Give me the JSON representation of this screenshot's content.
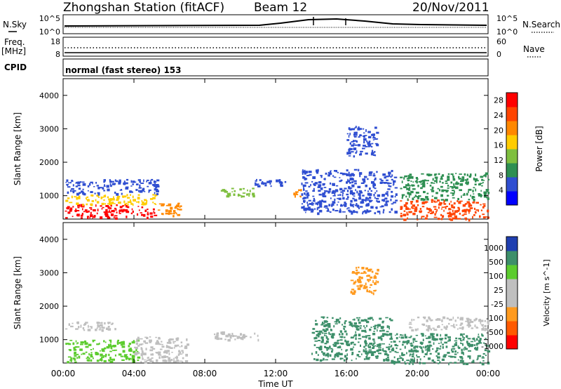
{
  "header": {
    "station": "Zhongshan Station (fitACF)",
    "beam": "Beam 12",
    "date": "20/Nov/2011"
  },
  "strip_labels": {
    "nsky": "N.Sky",
    "nsearch": "N.Search",
    "nsky_top": "10^5",
    "nsky_bottom": "10^0",
    "nsearch_top": "10^5",
    "nsearch_bottom": "10^0",
    "freq_line1": "Freq.",
    "freq_line2": "[MHz]",
    "freq_top": "18",
    "freq_bottom": "8",
    "nave": "Nave",
    "nave_top": "60",
    "nave_bottom": "0",
    "cpid": "CPID",
    "mode": "normal (fast stereo) 153"
  },
  "colors": {
    "power_scale": [
      "#0000ff",
      "#2f4ed1",
      "#2e8f52",
      "#7fbf3f",
      "#ffcc00",
      "#ff8800",
      "#ff4400",
      "#ff0000"
    ],
    "velocity_scale": [
      "#ff0000",
      "#ff5a00",
      "#ff9a1e",
      "#bfbfbf",
      "#bfbfbf",
      "#5ccc2e",
      "#3d8f6a",
      "#1f3fb0"
    ]
  },
  "chart_data": [
    {
      "type": "heatmap",
      "panel": "power",
      "ylabel": "Slant Range [km]",
      "yticks": [
        "1000",
        "2000",
        "3000",
        "4000"
      ],
      "ylim": [
        300,
        4500
      ],
      "xlim": [
        "00:00",
        "24:00"
      ],
      "colorbar": {
        "label": "Power [dB]",
        "ticks": [
          "4",
          "8",
          "12",
          "16",
          "20",
          "24",
          "28"
        ],
        "range": [
          0,
          30
        ]
      },
      "blobs": [
        {
          "t0": 0.1,
          "t1": 5.3,
          "r0": 350,
          "r1": 750,
          "level": 7
        },
        {
          "t0": 0.1,
          "t1": 5.3,
          "r0": 750,
          "r1": 1050,
          "level": 4
        },
        {
          "t0": 0.1,
          "t1": 5.3,
          "r0": 1050,
          "r1": 1500,
          "level": 1
        },
        {
          "t0": 5.3,
          "t1": 6.6,
          "r0": 400,
          "r1": 800,
          "level": 5
        },
        {
          "t0": 8.9,
          "t1": 10.8,
          "r0": 1000,
          "r1": 1250,
          "level": 3
        },
        {
          "t0": 10.8,
          "t1": 12.6,
          "r0": 1300,
          "r1": 1500,
          "level": 1
        },
        {
          "t0": 13.0,
          "t1": 13.4,
          "r0": 950,
          "r1": 1200,
          "level": 5
        },
        {
          "t0": 13.4,
          "t1": 18.8,
          "r0": 500,
          "r1": 1800,
          "level": 1
        },
        {
          "t0": 16.0,
          "t1": 17.7,
          "r0": 2200,
          "r1": 3100,
          "level": 1
        },
        {
          "t0": 19.0,
          "t1": 24.0,
          "r0": 300,
          "r1": 900,
          "level": 6
        },
        {
          "t0": 19.0,
          "t1": 24.0,
          "r0": 900,
          "r1": 1700,
          "level": 2
        }
      ]
    },
    {
      "type": "heatmap",
      "panel": "velocity",
      "ylabel": "Slant Range [km]",
      "yticks": [
        "1000",
        "2000",
        "3000",
        "4000"
      ],
      "ylim": [
        300,
        4500
      ],
      "xlim": [
        "00:00",
        "24:00"
      ],
      "xticks": [
        "00:00",
        "04:00",
        "08:00",
        "12:00",
        "16:00",
        "20:00",
        "00:00"
      ],
      "xlabel": "Time UT",
      "colorbar": {
        "label": "Velocity [m s^-1]",
        "ticks": [
          "1000",
          "500",
          "100",
          "25",
          "-25",
          "-100",
          "-500",
          "-1000"
        ]
      },
      "blobs": [
        {
          "t0": 0.1,
          "t1": 4.2,
          "r0": 350,
          "r1": 1000,
          "level": 5
        },
        {
          "t0": 0.1,
          "t1": 3.0,
          "r0": 1300,
          "r1": 1550,
          "level": 3
        },
        {
          "t0": 4.0,
          "t1": 7.0,
          "r0": 350,
          "r1": 1100,
          "level": 3
        },
        {
          "t0": 8.5,
          "t1": 11.0,
          "r0": 1000,
          "r1": 1250,
          "level": 3
        },
        {
          "t0": 14.0,
          "t1": 18.5,
          "r0": 400,
          "r1": 1700,
          "level": 6
        },
        {
          "t0": 16.2,
          "t1": 17.8,
          "r0": 2400,
          "r1": 3200,
          "level": 2
        },
        {
          "t0": 18.5,
          "t1": 24.0,
          "r0": 300,
          "r1": 1200,
          "level": 6
        },
        {
          "t0": 19.5,
          "t1": 24.0,
          "r0": 1300,
          "r1": 1700,
          "level": 3
        }
      ]
    }
  ]
}
